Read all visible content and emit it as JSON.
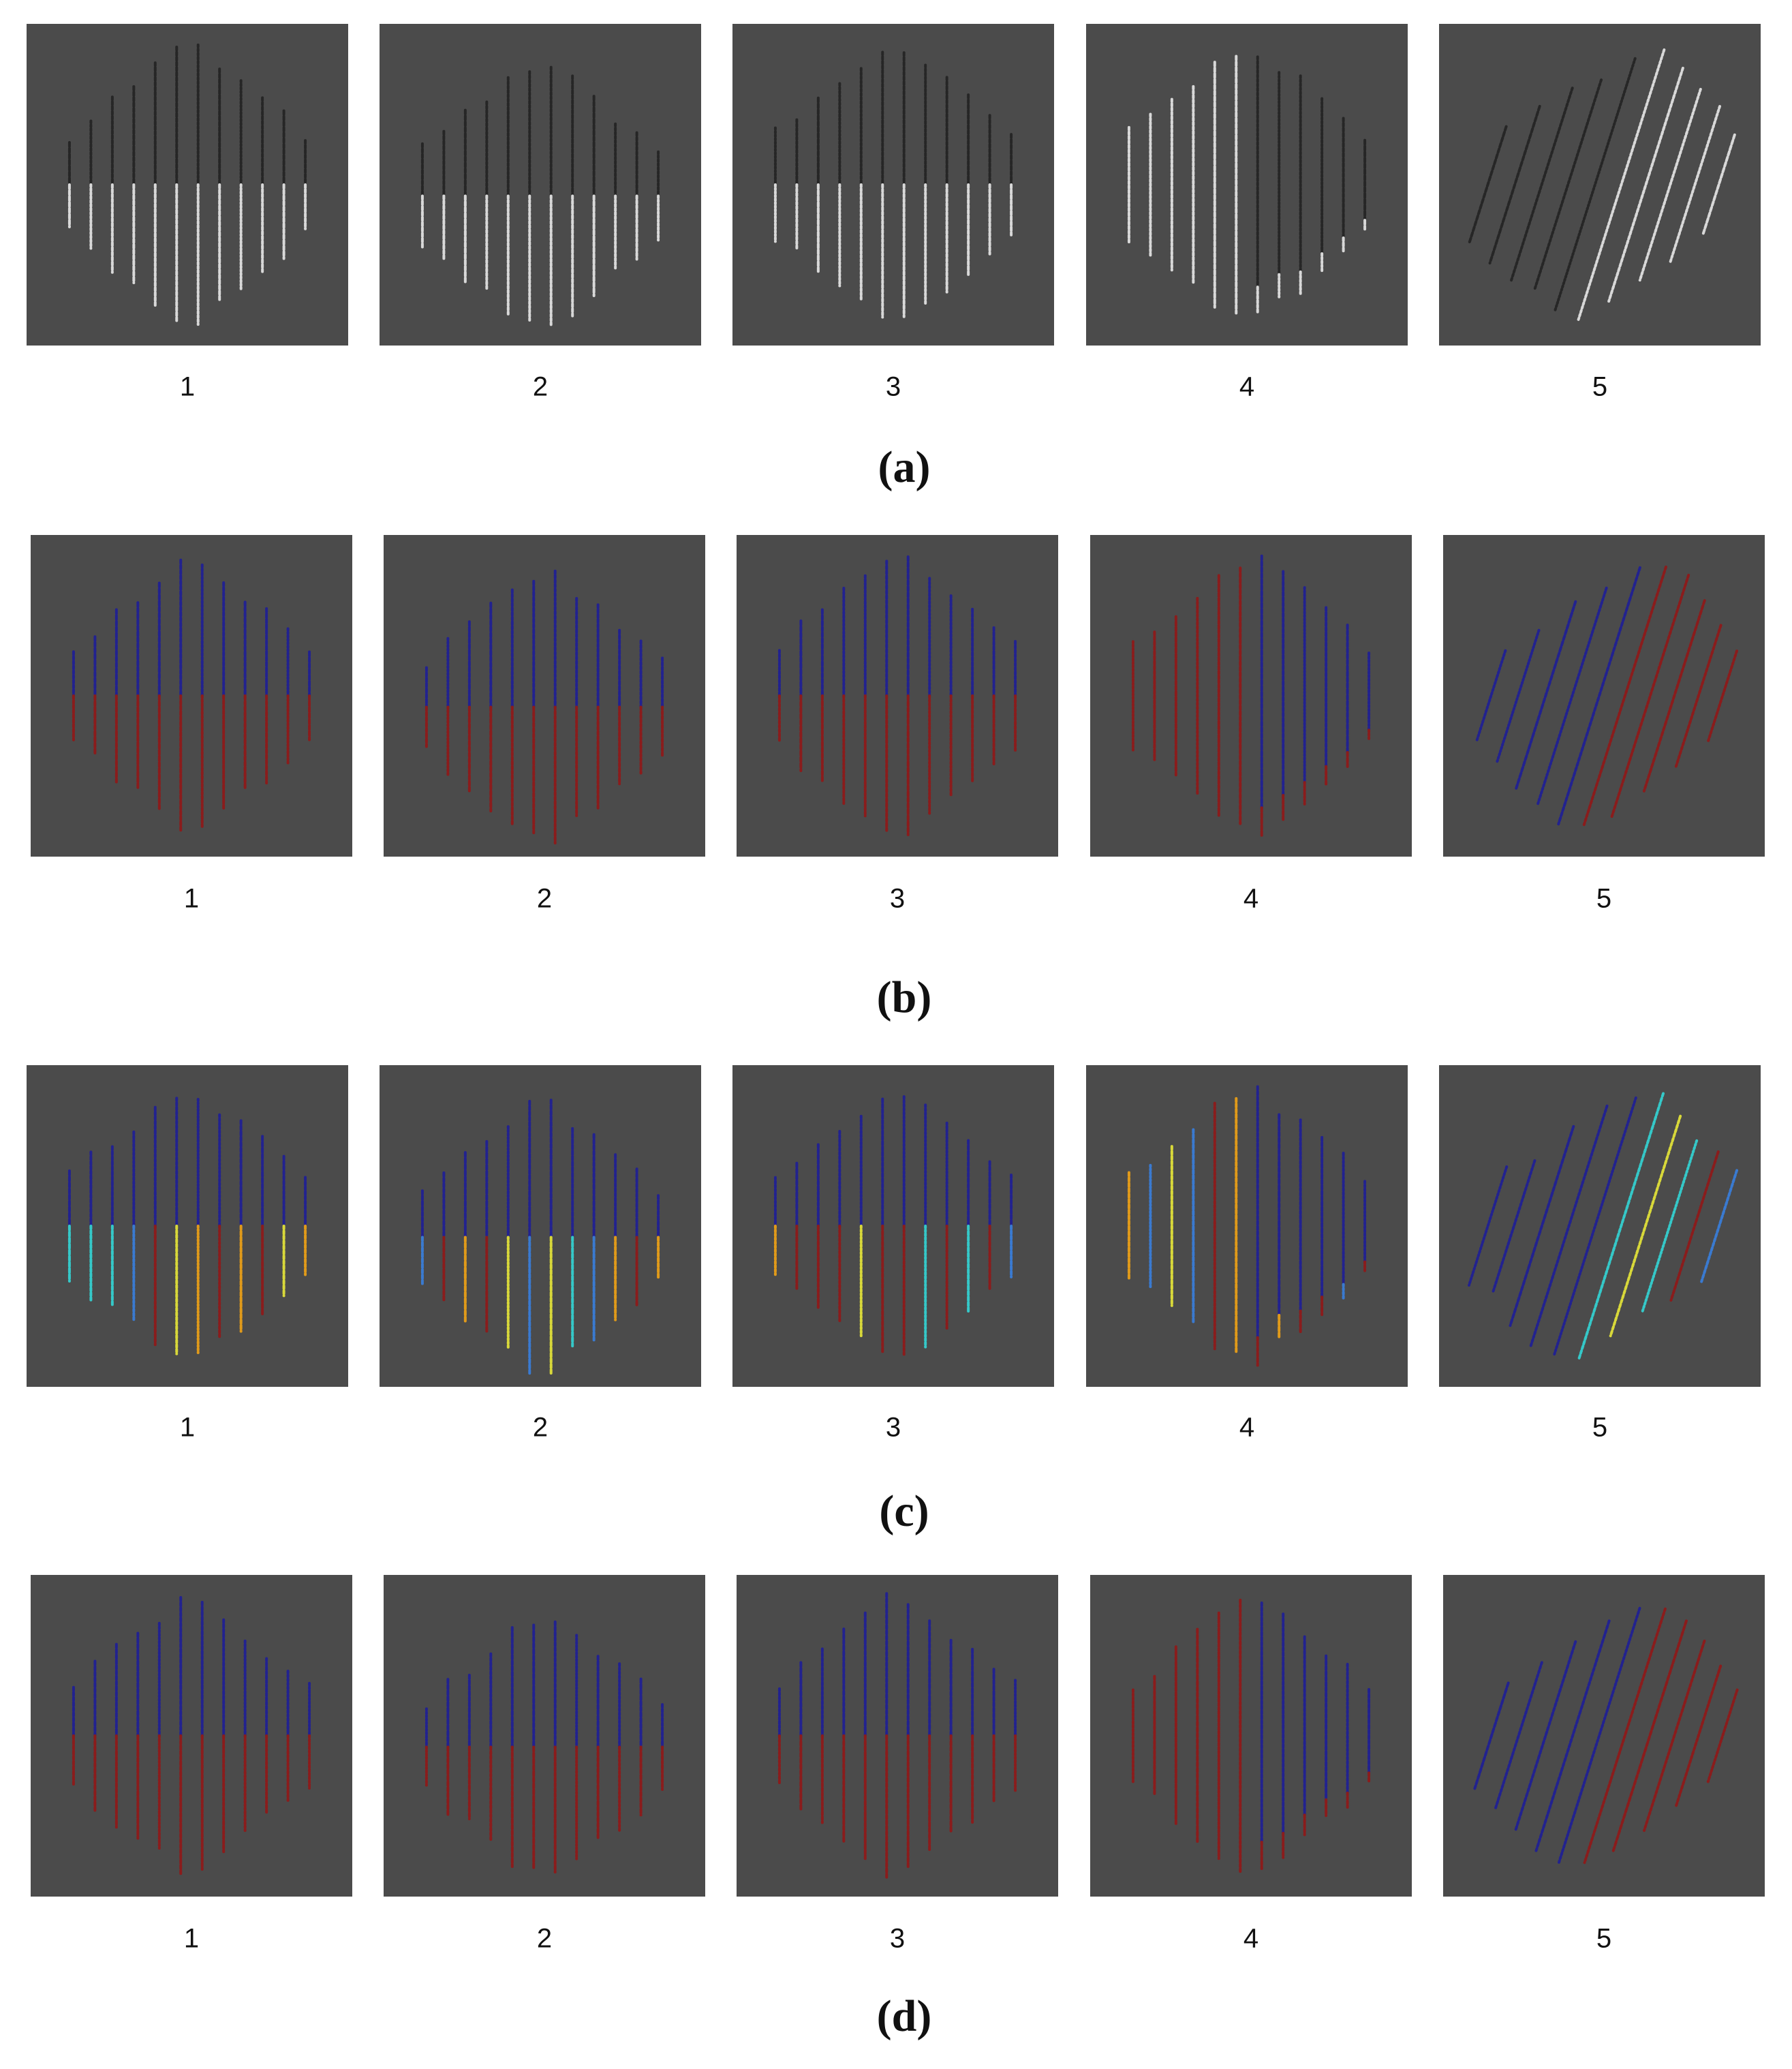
{
  "rows": [
    {
      "label": "(a)",
      "panels": [
        "1",
        "2",
        "3",
        "4",
        "5"
      ]
    },
    {
      "label": "(b)",
      "panels": [
        "1",
        "2",
        "3",
        "4",
        "5"
      ]
    },
    {
      "label": "(c)",
      "panels": [
        "1",
        "2",
        "3",
        "4",
        "5"
      ]
    },
    {
      "label": "(d)",
      "panels": [
        "1",
        "2",
        "3",
        "4",
        "5"
      ]
    }
  ]
}
